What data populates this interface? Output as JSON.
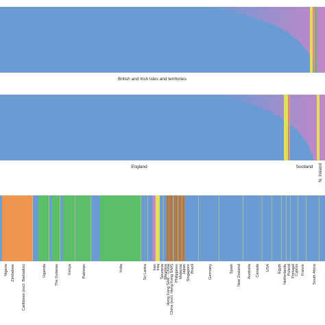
{
  "chart_data": [
    {
      "type": "area",
      "panel": "top",
      "description_of_encoding": "",
      "categories": [
        "British and Irish Isles and territories"
      ],
      "colors": {
        "base": "#6a9bd3",
        "purple": "#c586c8",
        "yellow": "#e3df56",
        "orange": "#ef9550",
        "green": "#5bbf6a"
      }
    },
    {
      "type": "area",
      "panel": "middle",
      "categories": [
        "England",
        "Scotland",
        "N. Ireland"
      ],
      "colors": {
        "base": "#6a9bd3",
        "purple": "#c586c8",
        "yellow": "#e3df56"
      }
    },
    {
      "type": "area",
      "panel": "bottom",
      "categories": [
        "Nigeria",
        "Zimbabwe",
        "Caribbean (excl. Barbados)",
        "Uganda",
        "The Guianas",
        "Kenya",
        "Pakistan",
        "India",
        "Sri Lanka",
        "Iran",
        "Iraq",
        "Tanzania",
        "Mauritius",
        "Hong Kong SAR - China",
        "China (excl. Hong Kong SAR)",
        "Philippines",
        "Malaysia",
        "Japan",
        "Singapore",
        "Brazil",
        "Germany",
        "Spain",
        "New Zealand",
        "Australia",
        "Canada",
        "USA",
        "Egypt",
        "Netherlands",
        "Poland",
        "Portugal",
        "Cyprus",
        "France",
        "South Africa"
      ],
      "dominant_colors": [
        "#ef9550",
        "#ef9550",
        "#ef9550",
        "#5bbf6a",
        "#5bbf6a",
        "#5bbf6a",
        "#5bbf6a",
        "#5bbf6a",
        "#6a9bd3",
        "#c586c8",
        "#e3df56",
        "#6a9bd3",
        "#6a9bd3",
        "#b07a50",
        "#b07a50",
        "#b07a50",
        "#b07a50",
        "#b07a50",
        "#6a9bd3",
        "#6a9bd3",
        "#6a9bd3",
        "#6a9bd3",
        "#6a9bd3",
        "#6a9bd3",
        "#6a9bd3",
        "#6a9bd3",
        "#6a9bd3",
        "#6a9bd3",
        "#6a9bd3",
        "#6a9bd3",
        "#6a9bd3",
        "#6a9bd3",
        "#6a9bd3"
      ]
    }
  ]
}
